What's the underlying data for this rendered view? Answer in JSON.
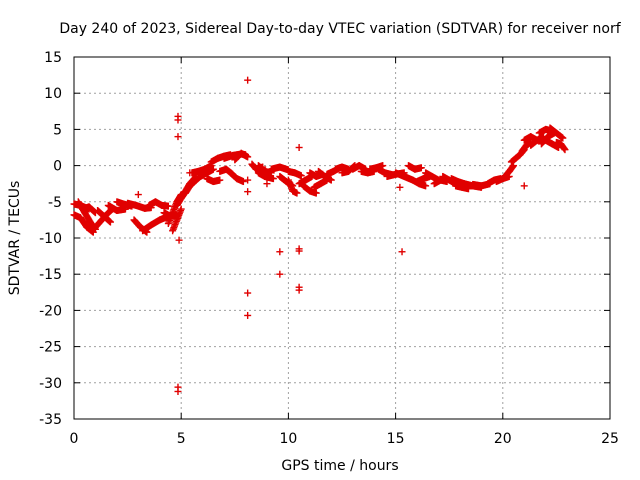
{
  "chart_data": {
    "type": "scatter",
    "title": "Day 240 of 2023, Sidereal Day-to-day VTEC variation (SDTVAR) for receiver norf",
    "xlabel": "GPS time / hours",
    "ylabel": "SDTVAR / TECUs",
    "xlim": [
      0,
      25
    ],
    "ylim": [
      -35,
      15
    ],
    "xticks": [
      0,
      5,
      10,
      15,
      20,
      25
    ],
    "xtick_labels": [
      "0",
      "5",
      "10",
      "15",
      "20",
      "25"
    ],
    "yticks": [
      15,
      10,
      5,
      0,
      -5,
      -10,
      -15,
      -20,
      -25,
      -30,
      -35
    ],
    "ytick_labels": [
      "15",
      "10",
      "5",
      "0",
      "-5",
      "-10",
      "-15",
      "-20",
      "-25",
      "-30",
      "-35"
    ],
    "grid": true,
    "marker": "+",
    "color": "#e00000",
    "series": [
      {
        "name": "satellite arcs (dense tracks)",
        "polylines": [
          [
            [
              0.0,
              -5.3
            ],
            [
              0.3,
              -5.5
            ],
            [
              0.7,
              -6.0
            ]
          ],
          [
            [
              0.0,
              -6.8
            ],
            [
              0.3,
              -7.2
            ],
            [
              0.6,
              -8.5
            ],
            [
              0.9,
              -9.2
            ]
          ],
          [
            [
              0.2,
              -5.0
            ],
            [
              0.5,
              -6.5
            ],
            [
              0.8,
              -8.0
            ],
            [
              1.0,
              -8.8
            ]
          ],
          [
            [
              0.4,
              -6.0
            ],
            [
              0.7,
              -5.7
            ],
            [
              1.0,
              -6.5
            ]
          ],
          [
            [
              1.0,
              -8.5
            ],
            [
              1.3,
              -7.5
            ],
            [
              1.6,
              -6.5
            ],
            [
              1.8,
              -6.0
            ]
          ],
          [
            [
              1.1,
              -6.2
            ],
            [
              1.4,
              -7.0
            ],
            [
              1.7,
              -7.8
            ]
          ],
          [
            [
              1.6,
              -5.5
            ],
            [
              2.0,
              -6.2
            ],
            [
              2.4,
              -6.0
            ]
          ],
          [
            [
              2.0,
              -5.0
            ],
            [
              2.3,
              -5.3
            ],
            [
              2.7,
              -5.6
            ]
          ],
          [
            [
              2.5,
              -5.2
            ],
            [
              2.9,
              -5.5
            ],
            [
              3.3,
              -5.9
            ],
            [
              3.6,
              -5.8
            ]
          ],
          [
            [
              2.8,
              -7.5
            ],
            [
              3.1,
              -8.5
            ],
            [
              3.4,
              -9.2
            ]
          ],
          [
            [
              3.2,
              -9.0
            ],
            [
              3.6,
              -8.2
            ],
            [
              4.0,
              -7.5
            ],
            [
              4.4,
              -7.0
            ]
          ],
          [
            [
              3.5,
              -5.5
            ],
            [
              3.8,
              -5.0
            ],
            [
              4.1,
              -5.5
            ],
            [
              4.4,
              -5.6
            ]
          ],
          [
            [
              4.2,
              -6.5
            ],
            [
              4.5,
              -7.0
            ],
            [
              4.8,
              -6.8
            ]
          ],
          [
            [
              4.4,
              -8.0
            ],
            [
              4.6,
              -6.5
            ],
            [
              4.8,
              -5.0
            ],
            [
              5.0,
              -4.0
            ]
          ],
          [
            [
              4.6,
              -9.0
            ],
            [
              4.8,
              -7.5
            ],
            [
              5.0,
              -6.0
            ]
          ],
          [
            [
              4.8,
              -5.5
            ],
            [
              5.1,
              -4.0
            ],
            [
              5.4,
              -2.5
            ],
            [
              5.7,
              -1.5
            ]
          ],
          [
            [
              5.0,
              -4.5
            ],
            [
              5.3,
              -3.2
            ],
            [
              5.6,
              -2.2
            ]
          ],
          [
            [
              5.2,
              -3.8
            ],
            [
              5.4,
              -2.8
            ],
            [
              5.7,
              -2.0
            ],
            [
              6.0,
              -1.2
            ]
          ],
          [
            [
              5.5,
              -1.0
            ],
            [
              5.8,
              -0.8
            ],
            [
              6.1,
              -0.5
            ],
            [
              6.4,
              0.0
            ]
          ],
          [
            [
              5.9,
              -1.5
            ],
            [
              6.2,
              -1.0
            ],
            [
              6.5,
              -0.5
            ]
          ],
          [
            [
              6.2,
              -1.8
            ],
            [
              6.5,
              -2.2
            ],
            [
              6.8,
              -2.0
            ]
          ],
          [
            [
              6.4,
              0.5
            ],
            [
              6.7,
              1.0
            ],
            [
              7.0,
              1.3
            ],
            [
              7.3,
              1.5
            ]
          ],
          [
            [
              7.0,
              1.0
            ],
            [
              7.4,
              1.4
            ],
            [
              7.8,
              1.6
            ],
            [
              8.0,
              1.5
            ]
          ],
          [
            [
              6.8,
              -0.8
            ],
            [
              7.1,
              -0.5
            ],
            [
              7.4,
              -1.2
            ]
          ],
          [
            [
              7.3,
              -1.0
            ],
            [
              7.6,
              -1.8
            ],
            [
              7.9,
              -2.2
            ]
          ],
          [
            [
              7.5,
              0.8
            ],
            [
              7.8,
              1.7
            ],
            [
              8.1,
              1.2
            ]
          ],
          [
            [
              8.3,
              0.2
            ],
            [
              8.5,
              -0.5
            ],
            [
              8.8,
              -0.2
            ]
          ],
          [
            [
              8.6,
              -1.0
            ],
            [
              8.9,
              -1.5
            ],
            [
              9.3,
              -1.8
            ]
          ],
          [
            [
              8.6,
              0.0
            ],
            [
              8.9,
              -0.8
            ],
            [
              9.2,
              -1.0
            ]
          ],
          [
            [
              9.2,
              -0.5
            ],
            [
              9.6,
              -0.2
            ],
            [
              10.0,
              -0.6
            ]
          ],
          [
            [
              9.6,
              -1.5
            ],
            [
              9.9,
              -2.2
            ],
            [
              10.2,
              -2.8
            ]
          ],
          [
            [
              10.0,
              -2.0
            ],
            [
              10.2,
              -3.5
            ],
            [
              10.4,
              -3.8
            ]
          ],
          [
            [
              10.0,
              -0.8
            ],
            [
              10.3,
              -1.0
            ],
            [
              10.6,
              -1.4
            ]
          ],
          [
            [
              10.5,
              -2.5
            ],
            [
              10.8,
              -2.0
            ],
            [
              11.1,
              -1.5
            ]
          ],
          [
            [
              10.7,
              -2.8
            ],
            [
              11.0,
              -3.5
            ],
            [
              11.3,
              -3.8
            ]
          ],
          [
            [
              11.0,
              -1.0
            ],
            [
              11.3,
              -1.5
            ],
            [
              11.6,
              -1.2
            ]
          ],
          [
            [
              11.2,
              -3.0
            ],
            [
              11.5,
              -2.5
            ],
            [
              11.8,
              -2.0
            ]
          ],
          [
            [
              11.4,
              -0.8
            ],
            [
              11.7,
              -1.5
            ],
            [
              12.0,
              -2.0
            ]
          ],
          [
            [
              11.8,
              -1.2
            ],
            [
              12.1,
              -0.8
            ],
            [
              12.4,
              -0.3
            ]
          ],
          [
            [
              12.2,
              -0.5
            ],
            [
              12.5,
              -0.2
            ],
            [
              12.8,
              -0.5
            ]
          ],
          [
            [
              12.5,
              -1.0
            ],
            [
              12.8,
              -0.8
            ],
            [
              13.1,
              0.0
            ]
          ],
          [
            [
              13.0,
              -0.5
            ],
            [
              13.3,
              0.0
            ],
            [
              13.6,
              -0.5
            ]
          ],
          [
            [
              13.4,
              -0.8
            ],
            [
              13.7,
              -1.0
            ],
            [
              14.0,
              -0.8
            ]
          ],
          [
            [
              13.8,
              -0.5
            ],
            [
              14.1,
              -0.3
            ],
            [
              14.4,
              0.0
            ]
          ],
          [
            [
              14.2,
              -0.5
            ],
            [
              14.5,
              -1.0
            ],
            [
              14.9,
              -1.3
            ]
          ],
          [
            [
              14.6,
              -1.5
            ],
            [
              15.0,
              -1.2
            ],
            [
              15.4,
              -1.0
            ]
          ],
          [
            [
              15.0,
              -1.0
            ],
            [
              15.4,
              -1.5
            ],
            [
              15.8,
              -2.0
            ]
          ],
          [
            [
              15.6,
              0.0
            ],
            [
              15.9,
              -0.5
            ],
            [
              16.2,
              -0.3
            ]
          ],
          [
            [
              15.8,
              -2.0
            ],
            [
              16.1,
              -2.5
            ],
            [
              16.4,
              -2.8
            ]
          ],
          [
            [
              16.0,
              -2.2
            ],
            [
              16.3,
              -1.8
            ],
            [
              16.6,
              -1.5
            ]
          ],
          [
            [
              16.4,
              -1.0
            ],
            [
              16.7,
              -1.5
            ],
            [
              17.0,
              -2.0
            ]
          ],
          [
            [
              16.8,
              -2.5
            ],
            [
              17.1,
              -2.0
            ],
            [
              17.4,
              -2.2
            ]
          ],
          [
            [
              17.2,
              -1.5
            ],
            [
              17.5,
              -2.0
            ],
            [
              17.8,
              -2.5
            ]
          ],
          [
            [
              17.6,
              -1.8
            ],
            [
              17.9,
              -2.2
            ],
            [
              18.2,
              -2.5
            ]
          ],
          [
            [
              17.8,
              -2.8
            ],
            [
              18.1,
              -3.0
            ],
            [
              18.4,
              -3.2
            ]
          ],
          [
            [
              18.2,
              -2.5
            ],
            [
              18.6,
              -2.8
            ],
            [
              19.0,
              -3.0
            ]
          ],
          [
            [
              18.6,
              -2.6
            ],
            [
              19.0,
              -2.8
            ],
            [
              19.4,
              -2.5
            ]
          ],
          [
            [
              19.3,
              -2.5
            ],
            [
              19.6,
              -2.0
            ],
            [
              19.9,
              -1.8
            ]
          ],
          [
            [
              19.7,
              -2.2
            ],
            [
              20.0,
              -1.8
            ],
            [
              20.3,
              -1.5
            ]
          ],
          [
            [
              20.1,
              -1.5
            ],
            [
              20.3,
              -0.8
            ],
            [
              20.5,
              0.0
            ]
          ],
          [
            [
              20.4,
              0.5
            ],
            [
              20.6,
              1.0
            ],
            [
              20.8,
              1.5
            ],
            [
              21.0,
              2.2
            ]
          ],
          [
            [
              20.9,
              2.0
            ],
            [
              21.1,
              2.8
            ],
            [
              21.3,
              3.2
            ]
          ],
          [
            [
              21.0,
              3.5
            ],
            [
              21.3,
              4.0
            ],
            [
              21.6,
              3.5
            ]
          ],
          [
            [
              21.3,
              2.8
            ],
            [
              21.6,
              3.5
            ],
            [
              21.9,
              4.0
            ]
          ],
          [
            [
              21.7,
              4.5
            ],
            [
              22.0,
              5.0
            ],
            [
              22.3,
              4.8
            ]
          ],
          [
            [
              21.8,
              3.0
            ],
            [
              22.1,
              4.0
            ],
            [
              22.4,
              4.5
            ]
          ],
          [
            [
              22.0,
              3.5
            ],
            [
              22.3,
              3.0
            ],
            [
              22.6,
              2.5
            ]
          ],
          [
            [
              22.2,
              5.2
            ],
            [
              22.5,
              4.5
            ],
            [
              22.8,
              3.8
            ]
          ],
          [
            [
              22.5,
              3.2
            ],
            [
              22.7,
              3.0
            ],
            [
              22.9,
              2.2
            ]
          ]
        ]
      },
      {
        "name": "isolated outliers",
        "points": [
          [
            4.85,
            6.8
          ],
          [
            4.85,
            6.3
          ],
          [
            4.85,
            4.0
          ],
          [
            4.9,
            -10.3
          ],
          [
            4.85,
            -30.6
          ],
          [
            4.85,
            -31.2
          ],
          [
            8.1,
            11.8
          ],
          [
            8.1,
            -2.0
          ],
          [
            8.1,
            -3.6
          ],
          [
            8.1,
            -17.6
          ],
          [
            8.1,
            -20.7
          ],
          [
            9.0,
            -2.5
          ],
          [
            9.6,
            -11.9
          ],
          [
            9.6,
            -15.0
          ],
          [
            10.5,
            2.5
          ],
          [
            10.5,
            -11.5
          ],
          [
            10.5,
            -11.8
          ],
          [
            10.5,
            -16.8
          ],
          [
            10.5,
            -17.2
          ],
          [
            15.3,
            -11.9
          ],
          [
            15.2,
            -3.0
          ],
          [
            21.0,
            -2.8
          ],
          [
            3.0,
            -4.0
          ],
          [
            5.4,
            -1.0
          ]
        ]
      }
    ]
  }
}
